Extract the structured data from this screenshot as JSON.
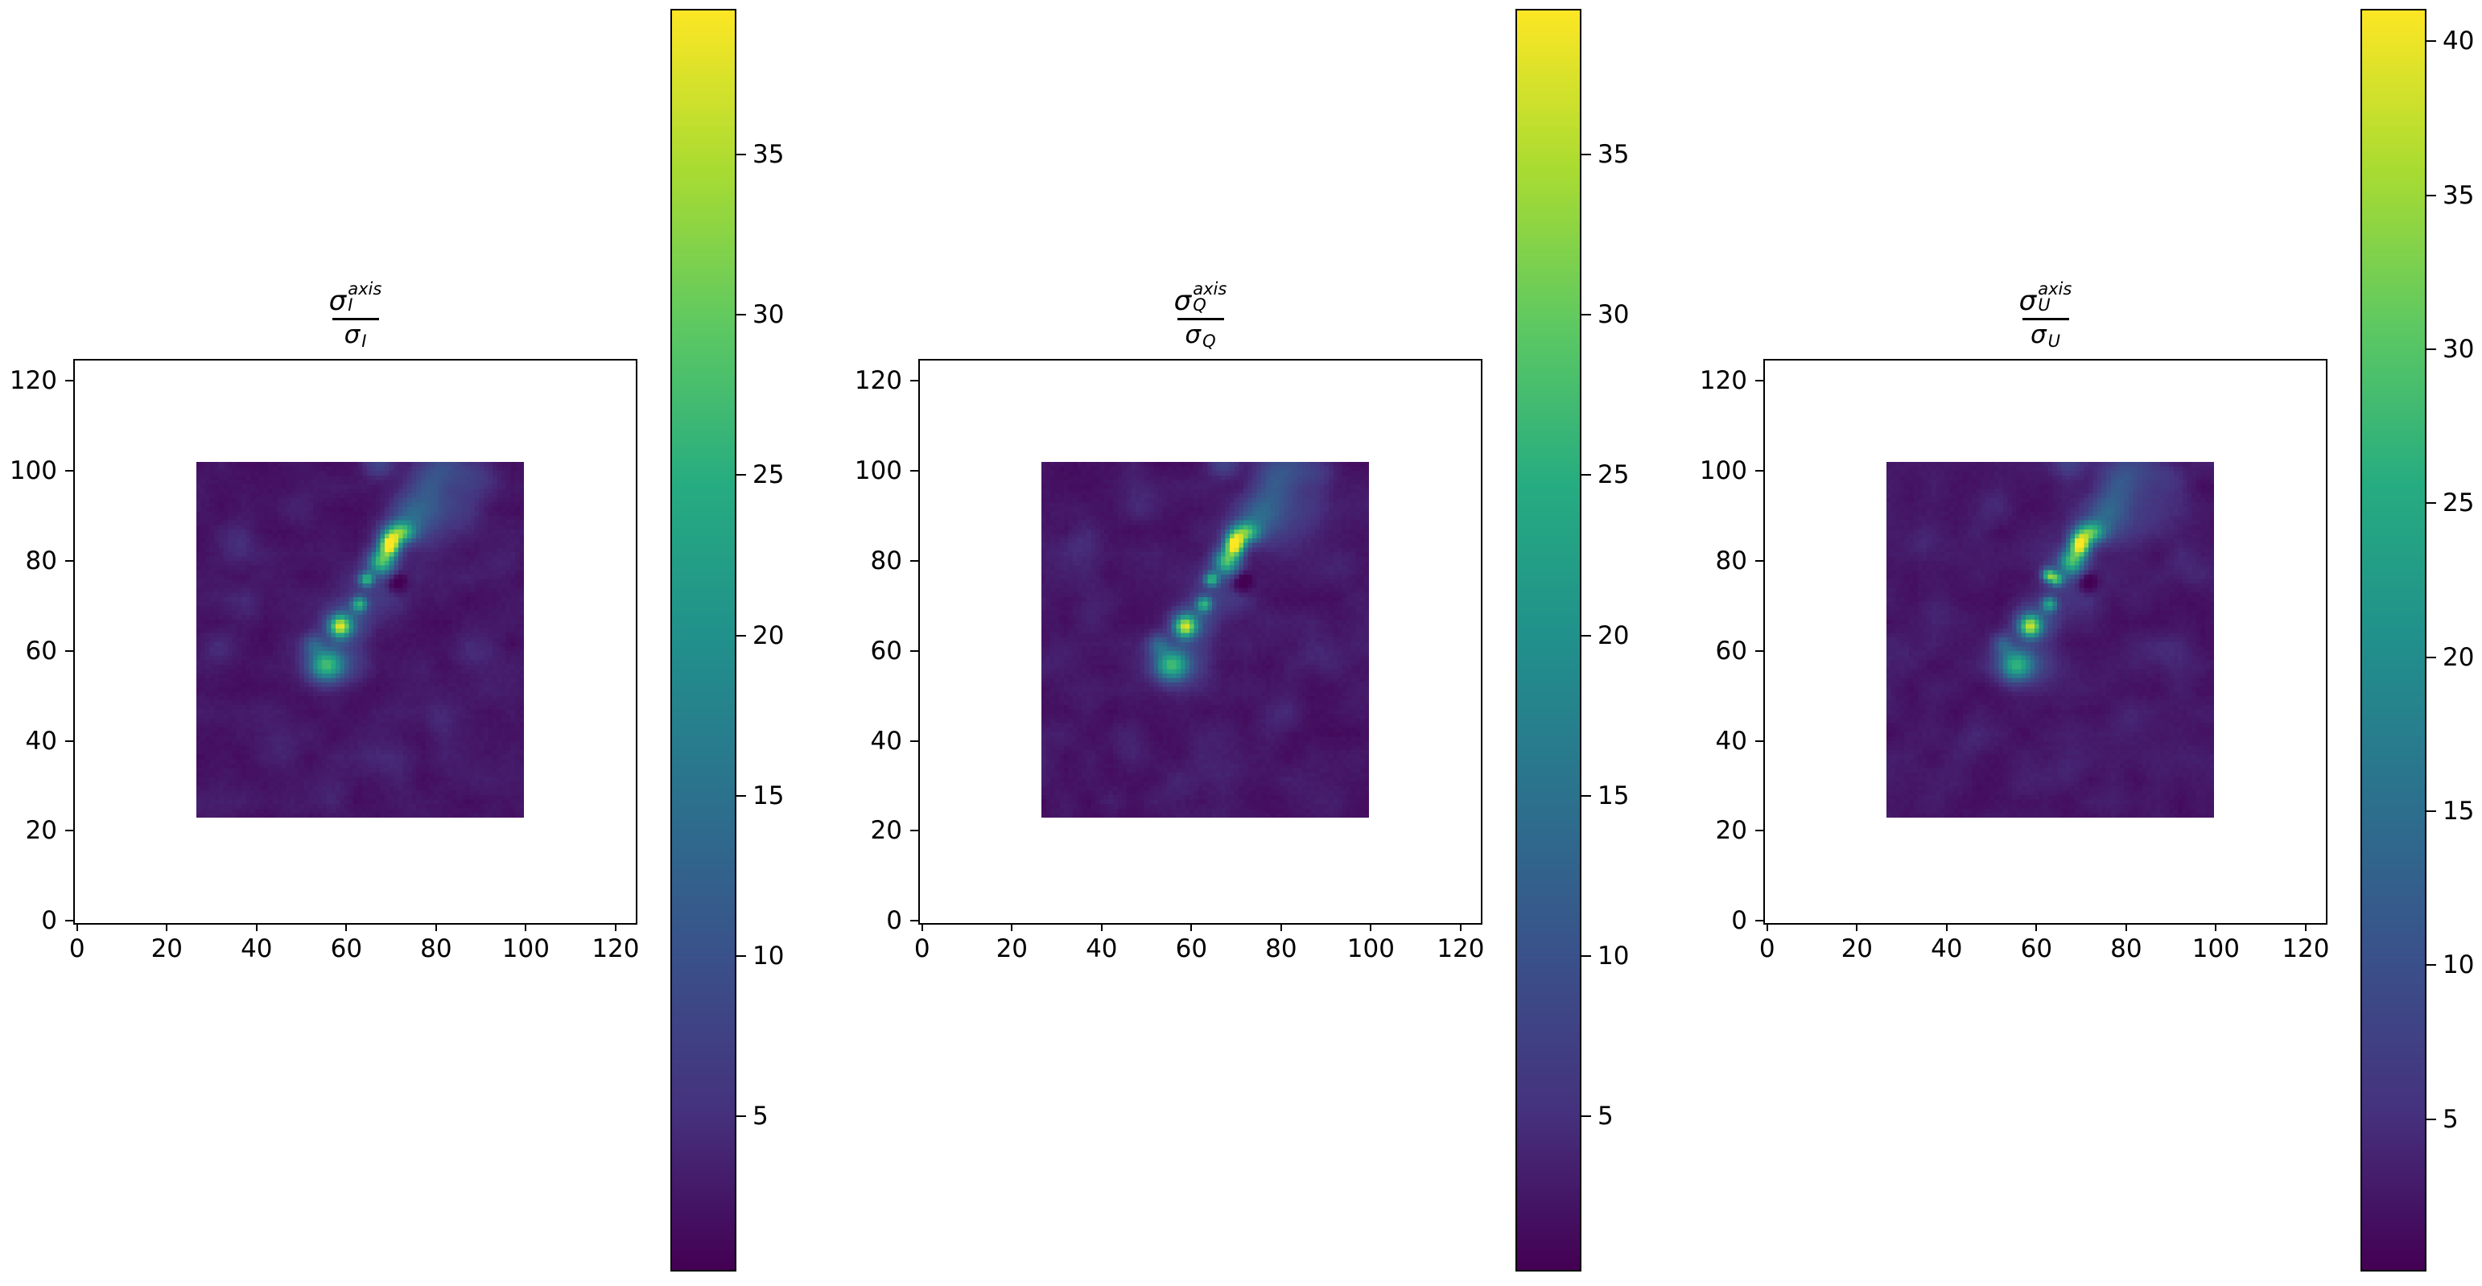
{
  "figure": {
    "background": "#ffffff"
  },
  "panels": [
    {
      "key": "I",
      "title": {
        "sigma": "σ",
        "sup": "axis",
        "sub": "I",
        "den_sigma": "σ",
        "den_sub": "I"
      },
      "x_ticks": [
        0,
        20,
        40,
        60,
        80,
        100,
        120
      ],
      "y_ticks": [
        0,
        20,
        40,
        60,
        80,
        100,
        120
      ],
      "colorbar": {
        "vmin": 0.2,
        "vmax": 39.5,
        "ticks": [
          5,
          10,
          15,
          20,
          25,
          30,
          35
        ]
      },
      "seed": 7,
      "extra_blobs": []
    },
    {
      "key": "Q",
      "title": {
        "sigma": "σ",
        "sup": "axis",
        "sub": "Q",
        "den_sigma": "σ",
        "den_sub": "Q"
      },
      "x_ticks": [
        0,
        20,
        40,
        60,
        80,
        100,
        120
      ],
      "y_ticks": [
        0,
        20,
        40,
        60,
        80,
        100,
        120
      ],
      "colorbar": {
        "vmin": 0.2,
        "vmax": 39.5,
        "ticks": [
          5,
          10,
          15,
          20,
          25,
          30,
          35
        ]
      },
      "seed": 11,
      "extra_blobs": []
    },
    {
      "key": "U",
      "title": {
        "sigma": "σ",
        "sup": "axis",
        "sub": "U",
        "den_sigma": "σ",
        "den_sub": "U"
      },
      "x_ticks": [
        0,
        20,
        40,
        60,
        80,
        100,
        120
      ],
      "y_ticks": [
        0,
        20,
        40,
        60,
        80,
        100,
        120
      ],
      "colorbar": {
        "vmin": 0.1,
        "vmax": 41.0,
        "ticks": [
          5,
          10,
          15,
          20,
          25,
          30,
          35,
          40
        ]
      },
      "seed": 13,
      "extra_blobs": [
        [
          62.6,
          76.9,
          1.0,
          1.0,
          24
        ]
      ]
    }
  ],
  "chart_data": {
    "type": "heatmap",
    "description": "Three ratio maps sigma^axis / sigma for Stokes I, Q and U, shown with viridis colormap and individual colorbars",
    "panel_titles": [
      "σ_I^axis / σ_I",
      "σ_Q^axis / σ_Q",
      "σ_U^axis / σ_U"
    ],
    "xlim": [
      -0.5,
      124.5
    ],
    "ylim": [
      -0.5,
      124.5
    ],
    "x_ticks": [
      0,
      20,
      40,
      60,
      80,
      100,
      120
    ],
    "y_ticks": [
      0,
      20,
      40,
      60,
      80,
      100,
      120
    ],
    "grid": false,
    "image_extent": {
      "x": [
        26.5,
        99.5
      ],
      "y": [
        23,
        102
      ]
    },
    "colormap": "viridis",
    "colormap_stops": [
      [
        0,
        "#440154"
      ],
      [
        0.125,
        "#46327e"
      ],
      [
        0.25,
        "#3a528b"
      ],
      [
        0.375,
        "#2c728e"
      ],
      [
        0.5,
        "#21918c"
      ],
      [
        0.625,
        "#27ad81"
      ],
      [
        0.75,
        "#5ec962"
      ],
      [
        0.875,
        "#aadc32"
      ],
      [
        1,
        "#fde725"
      ]
    ],
    "colorbar_ranges": [
      [
        0.2,
        39.5
      ],
      [
        0.2,
        39.5
      ],
      [
        0.1,
        41.0
      ]
    ],
    "background_level": 0.9,
    "noise": {
      "coarse_amp": 2.1,
      "coarse_step": 5,
      "fine_amp": 0.6
    },
    "blobs": [
      [
        55.4,
        56.8,
        2.6,
        2.4,
        20
      ],
      [
        57.5,
        57.5,
        4.6,
        3.6,
        6
      ],
      [
        52.5,
        61.5,
        1.6,
        1.6,
        8
      ],
      [
        58.5,
        65.4,
        1.7,
        1.7,
        28
      ],
      [
        59.8,
        66.5,
        3.2,
        2.8,
        8
      ],
      [
        62.8,
        70.4,
        1.2,
        1.2,
        19
      ],
      [
        64.4,
        75.9,
        1.1,
        1.1,
        21
      ],
      [
        67.8,
        79.9,
        2.0,
        2.0,
        24
      ],
      [
        69.6,
        83.6,
        1.5,
        1.7,
        35.5
      ],
      [
        71.9,
        86.3,
        2.3,
        1.7,
        25
      ],
      [
        66.6,
        74.0,
        4.5,
        5.5,
        4.5
      ],
      [
        74.4,
        90.4,
        3.2,
        3.0,
        7.5
      ],
      [
        78.0,
        96.0,
        3.2,
        4.0,
        6.5
      ],
      [
        82.0,
        101.0,
        4.0,
        3.5,
        5.5
      ],
      [
        67.0,
        101.5,
        2.5,
        2.0,
        5
      ],
      [
        79.0,
        87.5,
        4.5,
        3.5,
        4
      ],
      [
        85.5,
        92.5,
        4.5,
        3.5,
        3
      ],
      [
        88.5,
        99.0,
        3.0,
        2.5,
        3
      ],
      [
        71.2,
        75.2,
        1.6,
        1.6,
        -6.5
      ],
      [
        35,
        84,
        3,
        3,
        2.0
      ],
      [
        45,
        40,
        3,
        3,
        1.6
      ],
      [
        88.5,
        58.5,
        4,
        3,
        2.0
      ],
      [
        57,
        30.5,
        3,
        3,
        1.5
      ],
      [
        93.5,
        78.5,
        3.5,
        3,
        1.8
      ],
      [
        31,
        60,
        3,
        3,
        1.6
      ],
      [
        49.5,
        92,
        3,
        3,
        1.8
      ],
      [
        68,
        35,
        4,
        3,
        1.4
      ],
      [
        80,
        45,
        3,
        3,
        1.5
      ],
      [
        38,
        70,
        3,
        3,
        1.5
      ]
    ]
  }
}
